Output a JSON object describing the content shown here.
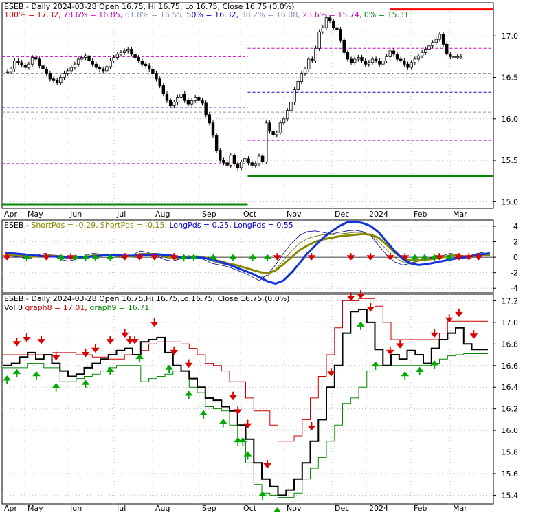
{
  "chart_data": [
    {
      "type": "candlestick",
      "title_parts": [
        {
          "text": "ESEB - Daily 2024-03-28 Open 16.75, Hi 16.75, Lo 16.75, Close 16.75 (0.0%)",
          "color": "#000000"
        }
      ],
      "fib_header": [
        {
          "text": "100% = 17.32,",
          "color": "#cc0000"
        },
        {
          "text": "78.6% = 16.85,",
          "color": "#cc00cc"
        },
        {
          "text": "61.8% = 16.55,",
          "color": "#8899bb"
        },
        {
          "text": "50% = 16.32,",
          "color": "#0000cc"
        },
        {
          "text": "38.2% = 16.08,",
          "color": "#8899bb"
        },
        {
          "text": "23.6% = 15.74,",
          "color": "#cc00cc"
        },
        {
          "text": "0% = 15.31",
          "color": "#008800"
        }
      ],
      "y_ticks": [
        15.0,
        15.5,
        16.0,
        16.5,
        17.0
      ],
      "ylim": [
        14.92,
        17.4
      ],
      "x_labels": [
        "Apr",
        "May",
        "Jun",
        "Jul",
        "Aug",
        "Sep",
        "Oct",
        "Nov",
        "Dec",
        "2024",
        "Feb",
        "Mar"
      ],
      "ohlc_close_trace": [
        16.57,
        16.6,
        16.7,
        16.68,
        16.65,
        16.62,
        16.66,
        16.74,
        16.72,
        16.64,
        16.6,
        16.55,
        16.48,
        16.46,
        16.44,
        16.5,
        16.55,
        16.58,
        16.62,
        16.66,
        16.72,
        16.74,
        16.76,
        16.7,
        16.66,
        16.62,
        16.6,
        16.58,
        16.63,
        16.7,
        16.74,
        16.78,
        16.8,
        16.82,
        16.84,
        16.78,
        16.74,
        16.7,
        16.66,
        16.64,
        16.6,
        16.55,
        16.48,
        16.4,
        16.3,
        16.22,
        16.16,
        16.2,
        16.26,
        16.3,
        16.22,
        16.18,
        16.22,
        16.26,
        16.22,
        16.19,
        16.05,
        15.95,
        15.8,
        15.62,
        15.5,
        15.47,
        15.44,
        15.56,
        15.46,
        15.41,
        15.48,
        15.52,
        15.47,
        15.44,
        15.46,
        15.55,
        15.48,
        15.95,
        15.85,
        15.81,
        15.83,
        15.95,
        16.0,
        16.1,
        16.2,
        16.35,
        16.45,
        16.55,
        16.6,
        16.72,
        16.7,
        16.85,
        17.05,
        17.1,
        17.22,
        17.18,
        17.1,
        17.08,
        16.95,
        16.8,
        16.72,
        16.68,
        16.72,
        16.74,
        16.7,
        16.66,
        16.68,
        16.72,
        16.7,
        16.66,
        16.7,
        16.75,
        16.82,
        16.78,
        16.72,
        16.7,
        16.66,
        16.62,
        16.68,
        16.72,
        16.76,
        16.8,
        16.84,
        16.88,
        16.92,
        16.96,
        17.02,
        16.9,
        16.78,
        16.75,
        16.75,
        16.75,
        16.75
      ],
      "hlines": [
        {
          "value": 17.32,
          "color": "#ff0000",
          "kind": "solid",
          "from": 0.79
        },
        {
          "value": 16.85,
          "color": "#cc00cc",
          "kind": "dashed",
          "from": 0.5
        },
        {
          "value": 16.75,
          "color": "#cc00cc",
          "kind": "dashed",
          "from": 0.0,
          "to": 0.5
        },
        {
          "value": 16.55,
          "color": "#999999",
          "kind": "dashed"
        },
        {
          "value": 16.32,
          "color": "#0000cc",
          "kind": "dashed",
          "from": 0.5
        },
        {
          "value": 16.14,
          "color": "#0000cc",
          "kind": "dashed",
          "from": 0.0,
          "to": 0.5
        },
        {
          "value": 16.08,
          "color": "#999999",
          "kind": "dashed"
        },
        {
          "value": 15.74,
          "color": "#cc00cc",
          "kind": "dashed",
          "from": 0.5
        },
        {
          "value": 15.46,
          "color": "#cc00cc",
          "kind": "dashed",
          "from": 0.0,
          "to": 0.5
        },
        {
          "value": 15.31,
          "color": "#008800",
          "kind": "solid",
          "from": 0.5
        },
        {
          "value": 14.97,
          "color": "#008800",
          "kind": "solid",
          "from": 0.0,
          "to": 0.5
        }
      ]
    },
    {
      "type": "line",
      "title_parts": [
        {
          "text": "ESEB -",
          "color": "#000000"
        },
        {
          "text": "ShortPds = -0.29,",
          "color": "#888800"
        },
        {
          "text": "ShortPds = -0.15,",
          "color": "#888800"
        },
        {
          "text": "LongPds = 0.25,",
          "color": "#0000cc"
        },
        {
          "text": "LongPds = 0.55",
          "color": "#0000cc"
        }
      ],
      "y_ticks": [
        4,
        2,
        0,
        -2,
        -4
      ],
      "ylim": [
        -4.6,
        4.8
      ],
      "series": [
        {
          "values": [
            0.2,
            0.1,
            0.0,
            -0.2,
            0.3,
            0.5,
            0.2,
            -0.3,
            -0.5,
            -0.2,
            0.2,
            0.5,
            0.4,
            0.3,
            0.1,
            -0.1,
            0.3,
            0.8,
            0.6,
            0.2,
            -0.3,
            -0.5,
            -0.2,
            0.2,
            0.1,
            -0.3,
            -0.8,
            -1.0,
            -1.2,
            -1.6,
            -2.0,
            -2.5,
            -3.0,
            -2.2,
            -1.0,
            0.5,
            1.8,
            2.8,
            3.3,
            3.4,
            3.2,
            3.0,
            3.2,
            3.4,
            3.5,
            3.3,
            2.8,
            1.5,
            0.3,
            -0.6,
            -1.0,
            -0.8,
            -0.5,
            -0.2,
            0.0,
            0.2,
            0.5,
            0.3,
            0.0,
            0.4,
            0.6,
            0.3
          ],
          "color": "#000088",
          "width": 0.8
        },
        {
          "values": [
            0.3,
            0.2,
            0.1,
            0.0,
            0.2,
            0.3,
            0.2,
            0.0,
            -0.2,
            -0.1,
            0.1,
            0.3,
            0.3,
            0.2,
            0.1,
            0.0,
            0.2,
            0.5,
            0.5,
            0.3,
            0.0,
            -0.2,
            -0.1,
            0.1,
            0.1,
            -0.1,
            -0.5,
            -0.8,
            -1.0,
            -1.3,
            -1.7,
            -2.2,
            -2.6,
            -2.4,
            -1.6,
            -0.4,
            0.8,
            1.8,
            2.4,
            2.7,
            2.9,
            2.9,
            3.0,
            3.1,
            3.2,
            3.2,
            2.9,
            2.0,
            1.0,
            0.0,
            -0.6,
            -0.7,
            -0.5,
            -0.3,
            -0.1,
            0.1,
            0.3,
            0.3,
            0.1,
            0.3,
            0.5,
            0.4
          ],
          "color": "#666600",
          "width": 0.8
        },
        {
          "values": [
            0.4,
            0.3,
            0.2,
            0.1,
            0.1,
            0.2,
            0.2,
            0.1,
            0.0,
            -0.1,
            0.0,
            0.2,
            0.3,
            0.3,
            0.2,
            0.1,
            0.1,
            0.3,
            0.4,
            0.4,
            0.2,
            0.0,
            -0.1,
            0.0,
            0.1,
            0.0,
            -0.3,
            -0.5,
            -0.8,
            -1.0,
            -1.3,
            -1.6,
            -1.9,
            -2.1,
            -1.7,
            -0.9,
            0.0,
            0.9,
            1.5,
            2.0,
            2.3,
            2.5,
            2.7,
            2.8,
            2.9,
            3.0,
            2.9,
            2.5,
            1.6,
            0.6,
            -0.1,
            -0.4,
            -0.4,
            -0.3,
            -0.2,
            0.0,
            0.2,
            0.2,
            0.1,
            0.2,
            0.3,
            0.3
          ],
          "color": "#888800",
          "width": 3
        },
        {
          "values": [
            0.6,
            0.5,
            0.4,
            0.3,
            0.2,
            0.1,
            0.1,
            0.1,
            0.0,
            0.0,
            0.0,
            0.1,
            0.2,
            0.3,
            0.3,
            0.2,
            0.2,
            0.2,
            0.3,
            0.4,
            0.3,
            0.2,
            0.0,
            -0.1,
            0.0,
            -0.1,
            -0.3,
            -0.6,
            -0.9,
            -1.3,
            -1.7,
            -2.1,
            -2.6,
            -3.1,
            -3.4,
            -3.0,
            -2.0,
            -0.8,
            0.5,
            1.5,
            2.5,
            3.3,
            4.0,
            4.5,
            4.6,
            4.4,
            4.0,
            3.2,
            2.0,
            0.8,
            -0.2,
            -0.8,
            -1.0,
            -0.9,
            -0.7,
            -0.5,
            -0.3,
            -0.1,
            0.0,
            0.2,
            0.4,
            0.5
          ],
          "color": "#1133dd",
          "width": 3
        }
      ],
      "red_arrows": [
        0.01,
        0.09,
        0.14,
        0.25,
        0.28,
        0.31,
        0.35,
        0.56,
        0.63,
        0.71,
        0.75,
        0.79,
        0.82,
        0.89,
        0.93,
        0.95,
        0.97
      ],
      "green_arrows": [
        0.05,
        0.12,
        0.15,
        0.17,
        0.19,
        0.22,
        0.37,
        0.39,
        0.43,
        0.47,
        0.51,
        0.54,
        0.84,
        0.86,
        0.88,
        0.91
      ]
    },
    {
      "type": "line",
      "title_parts": [
        {
          "text": "ESEB - Daily 2024-03-28 Open 16.75,Hi 16.75,Lo 16.75, Close 16.75 (0.0%)",
          "color": "#000000"
        }
      ],
      "legend_parts": [
        {
          "text": "Vol 0",
          "color": "#000000"
        },
        {
          "text": "graph8 = 17.01,",
          "color": "#cc0000"
        },
        {
          "text": "graph9 = 16.71",
          "color": "#008800"
        }
      ],
      "y_ticks": [
        17.2,
        17.0,
        16.8,
        16.6,
        16.4,
        16.2,
        16.0,
        15.8,
        15.6,
        15.4
      ],
      "ylim": [
        15.32,
        17.26
      ],
      "x_labels": [
        "Apr",
        "May",
        "Jun",
        "Jul",
        "Aug",
        "Sep",
        "Oct",
        "Nov",
        "Dec",
        "2024",
        "Feb",
        "Mar"
      ],
      "graph8": [
        16.7,
        16.7,
        16.7,
        16.7,
        16.7,
        16.7,
        16.72,
        16.72,
        16.72,
        16.7,
        16.7,
        16.68,
        16.68,
        16.66,
        16.66,
        16.7,
        16.7,
        16.74,
        16.8,
        16.82,
        16.82,
        16.82,
        16.8,
        16.76,
        16.7,
        16.62,
        16.6,
        16.55,
        16.45,
        16.45,
        16.3,
        16.18,
        16.18,
        16.05,
        15.9,
        15.9,
        15.95,
        16.1,
        16.3,
        16.5,
        16.7,
        16.95,
        17.2,
        17.2,
        17.22,
        17.22,
        17.15,
        17.0,
        16.84,
        16.84,
        16.84,
        16.84,
        16.84,
        16.84,
        16.9,
        17.01,
        17.01,
        17.01,
        17.01,
        17.01
      ],
      "graph9": [
        16.58,
        16.58,
        16.58,
        16.62,
        16.62,
        16.58,
        16.58,
        16.45,
        16.45,
        16.48,
        16.5,
        16.52,
        16.55,
        16.58,
        16.6,
        16.6,
        16.6,
        16.45,
        16.48,
        16.5,
        16.52,
        16.55,
        16.55,
        16.4,
        16.35,
        16.22,
        16.2,
        16.18,
        16.05,
        15.9,
        15.7,
        15.5,
        15.42,
        15.4,
        15.38,
        15.38,
        15.42,
        15.55,
        15.65,
        15.75,
        15.9,
        16.05,
        16.25,
        16.3,
        16.4,
        16.55,
        16.6,
        16.6,
        16.6,
        16.6,
        16.6,
        16.6,
        16.6,
        16.62,
        16.66,
        16.69,
        16.7,
        16.71,
        16.71,
        16.71
      ],
      "price": [
        16.6,
        16.62,
        16.68,
        16.72,
        16.66,
        16.7,
        16.62,
        16.55,
        16.5,
        16.52,
        16.58,
        16.62,
        16.66,
        16.7,
        16.74,
        16.76,
        16.7,
        16.82,
        16.84,
        16.86,
        16.72,
        16.6,
        16.55,
        16.48,
        16.4,
        16.3,
        16.28,
        16.22,
        16.18,
        16.05,
        15.92,
        15.7,
        15.55,
        15.48,
        15.4,
        15.45,
        15.55,
        15.7,
        15.9,
        16.1,
        16.4,
        16.6,
        16.9,
        17.1,
        17.12,
        17.0,
        16.75,
        16.6,
        16.7,
        16.66,
        16.74,
        16.7,
        16.62,
        16.76,
        16.84,
        16.9,
        16.95,
        16.8,
        16.75,
        16.75
      ],
      "red_arrows": [
        0.03,
        0.05,
        0.08,
        0.11,
        0.17,
        0.19,
        0.22,
        0.25,
        0.26,
        0.27,
        0.31,
        0.35,
        0.38,
        0.47,
        0.48,
        0.5,
        0.54,
        0.63,
        0.67,
        0.71,
        0.73,
        0.75,
        0.79,
        0.81,
        0.88,
        0.91,
        0.93,
        0.96
      ],
      "green_arrows": [
        0.01,
        0.03,
        0.07,
        0.11,
        0.17,
        0.22,
        0.28,
        0.34,
        0.38,
        0.41,
        0.45,
        0.48,
        0.49,
        0.5,
        0.53,
        0.56,
        0.73,
        0.76,
        0.82,
        0.85,
        0.88
      ]
    }
  ]
}
